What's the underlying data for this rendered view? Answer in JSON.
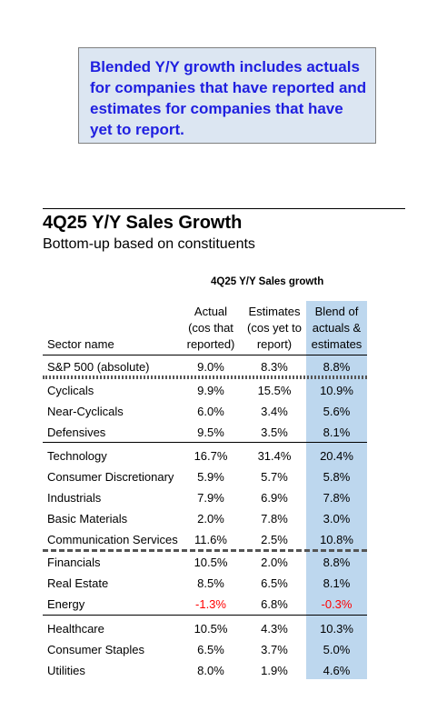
{
  "note": {
    "lines": [
      "Blended Y/Y growth includes actuals",
      "for companies that have reported and",
      "estimates for companies that have",
      "yet to report."
    ]
  },
  "title": "4Q25 Y/Y Sales Growth",
  "subtitle": "Bottom-up based on constituents",
  "table": {
    "group_header": "4Q25 Y/Y Sales growth",
    "headers": {
      "sector": "Sector name",
      "actual": [
        "Actual",
        "(cos that",
        "reported)"
      ],
      "estimates": [
        "Estimates",
        "(cos yet to",
        "report)"
      ],
      "blend": [
        "Blend of",
        "actuals &",
        "estimates"
      ]
    },
    "rows": [
      {
        "name": "S&P 500 (absolute)",
        "actual": "9.0%",
        "estimates": "8.3%",
        "blend": "8.8%"
      },
      {
        "name": "Cyclicals",
        "actual": "9.9%",
        "estimates": "15.5%",
        "blend": "10.9%"
      },
      {
        "name": "Near-Cyclicals",
        "actual": "6.0%",
        "estimates": "3.4%",
        "blend": "5.6%"
      },
      {
        "name": "Defensives",
        "actual": "9.5%",
        "estimates": "3.5%",
        "blend": "8.1%"
      },
      {
        "name": "Technology",
        "actual": "16.7%",
        "estimates": "31.4%",
        "blend": "20.4%"
      },
      {
        "name": "Consumer Discretionary",
        "actual": "5.9%",
        "estimates": "5.7%",
        "blend": "5.8%"
      },
      {
        "name": "Industrials",
        "actual": "7.9%",
        "estimates": "6.9%",
        "blend": "7.8%"
      },
      {
        "name": "Basic Materials",
        "actual": "2.0%",
        "estimates": "7.8%",
        "blend": "3.0%"
      },
      {
        "name": "Communication Services",
        "actual": "11.6%",
        "estimates": "2.5%",
        "blend": "10.8%"
      },
      {
        "name": "Financials",
        "actual": "10.5%",
        "estimates": "2.0%",
        "blend": "8.8%"
      },
      {
        "name": "Real Estate",
        "actual": "8.5%",
        "estimates": "6.5%",
        "blend": "8.1%"
      },
      {
        "name": "Energy",
        "actual": "-1.3%",
        "estimates": "6.8%",
        "blend": "-0.3%"
      },
      {
        "name": "Healthcare",
        "actual": "10.5%",
        "estimates": "4.3%",
        "blend": "10.3%"
      },
      {
        "name": "Consumer Staples",
        "actual": "6.5%",
        "estimates": "3.7%",
        "blend": "5.0%"
      },
      {
        "name": "Utilities",
        "actual": "8.0%",
        "estimates": "1.9%",
        "blend": "4.6%"
      }
    ]
  },
  "colors": {
    "negative": "#ff0000",
    "note_text": "#1f1fe0",
    "note_bg": "#dce6f2",
    "blend_bg": "#bdd7ee"
  }
}
